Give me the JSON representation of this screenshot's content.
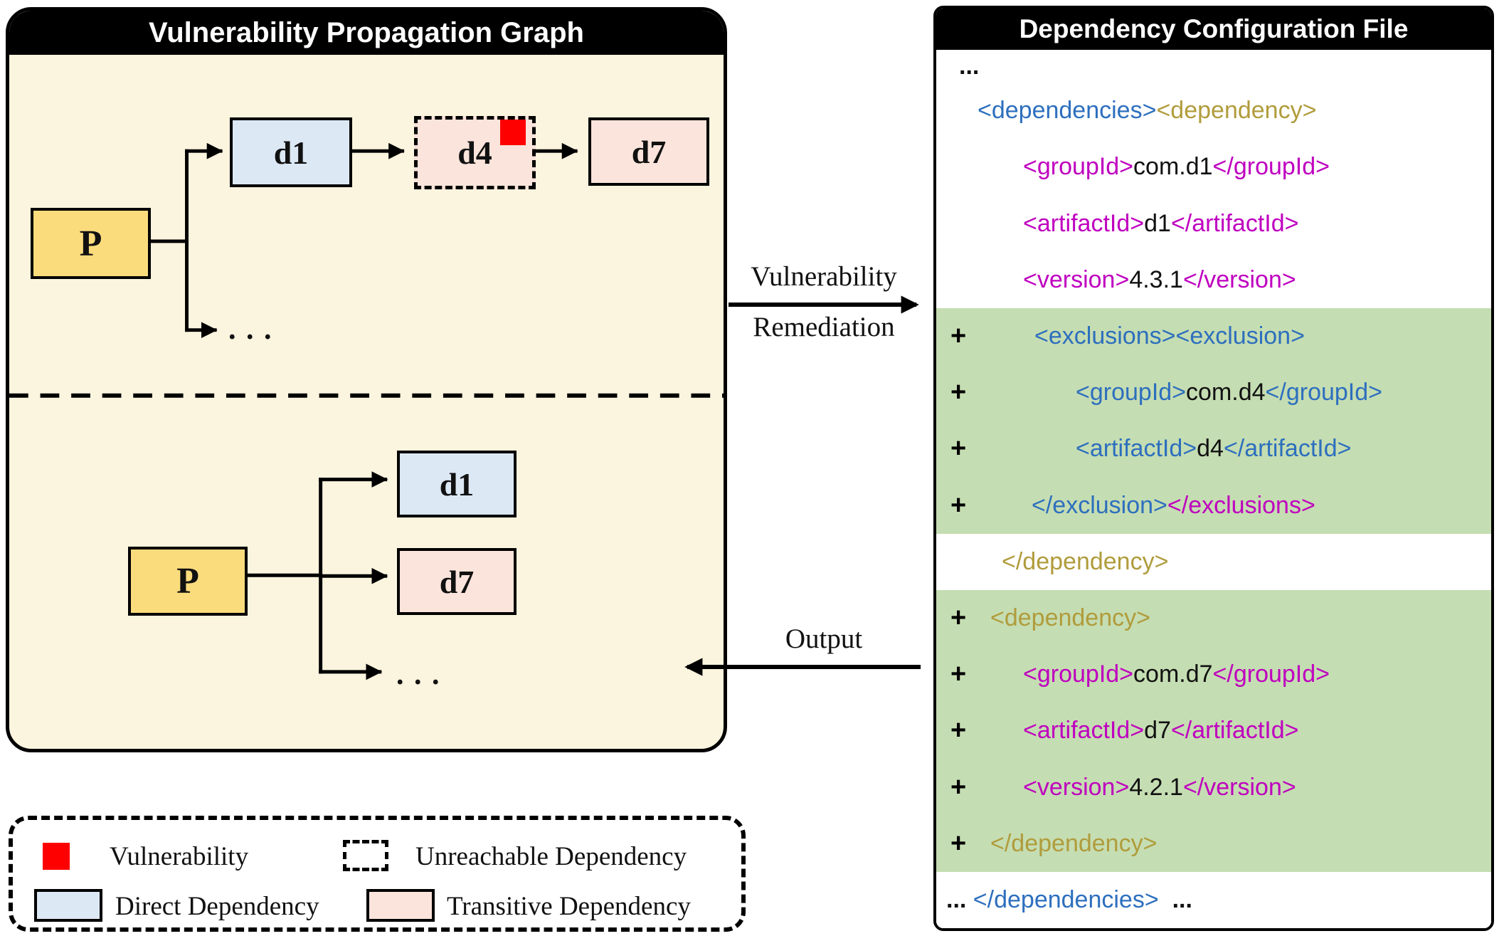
{
  "left_panel": {
    "title": "Vulnerability Propagation Graph",
    "top_graph": {
      "p": "P",
      "d1": "d1",
      "d4": "d4",
      "d7": "d7",
      "ellipsis": ". . ."
    },
    "bottom_graph": {
      "p": "P",
      "d1": "d1",
      "d7": "d7",
      "ellipsis": ". . ."
    }
  },
  "flow": {
    "remediation_line1": "Vulnerability",
    "remediation_line2": "Remediation",
    "output_label": "Output"
  },
  "legend": {
    "vulnerability": "Vulnerability",
    "unreachable": "Unreachable Dependency",
    "direct": "Direct Dependency",
    "transitive": "Transitive Dependency"
  },
  "right_panel": {
    "title": "Dependency Configuration File",
    "code_lines": [
      {
        "pad": 32,
        "plus": false,
        "highlight": false,
        "segments": [
          {
            "t": "...",
            "c": "black",
            "b": true
          }
        ]
      },
      {
        "pad": 58,
        "plus": false,
        "highlight": false,
        "segments": [
          {
            "t": "<dependencies>",
            "c": "blue"
          },
          {
            "t": "<dependency>",
            "c": "olive"
          }
        ]
      },
      {
        "pad": 122,
        "plus": false,
        "highlight": false,
        "segments": [
          {
            "t": "<groupId>",
            "c": "magenta"
          },
          {
            "t": "com.d1",
            "c": "black"
          },
          {
            "t": "</groupId>",
            "c": "magenta"
          }
        ]
      },
      {
        "pad": 122,
        "plus": false,
        "highlight": false,
        "segments": [
          {
            "t": "<artifactId>",
            "c": "magenta"
          },
          {
            "t": "d1",
            "c": "black"
          },
          {
            "t": "</artifactId>",
            "c": "magenta"
          }
        ]
      },
      {
        "pad": 122,
        "plus": false,
        "highlight": false,
        "segments": [
          {
            "t": "<version>",
            "c": "magenta"
          },
          {
            "t": "4.3.1",
            "c": "black"
          },
          {
            "t": "</version>",
            "c": "magenta"
          }
        ]
      },
      {
        "pad": 138,
        "plus": true,
        "highlight": true,
        "segments": [
          {
            "t": "<exclusions>",
            "c": "blue"
          },
          {
            "t": "<exclusion>",
            "c": "blue"
          }
        ]
      },
      {
        "pad": 196,
        "plus": true,
        "highlight": true,
        "segments": [
          {
            "t": "<groupId>",
            "c": "blue"
          },
          {
            "t": "com.d4",
            "c": "black"
          },
          {
            "t": "</groupId>",
            "c": "blue"
          }
        ]
      },
      {
        "pad": 196,
        "plus": true,
        "highlight": true,
        "segments": [
          {
            "t": "<artifactId>",
            "c": "blue"
          },
          {
            "t": "d4",
            "c": "black"
          },
          {
            "t": "</artifactId>",
            "c": "blue"
          }
        ]
      },
      {
        "pad": 134,
        "plus": true,
        "highlight": true,
        "segments": [
          {
            "t": "</exclusion>",
            "c": "blue"
          },
          {
            "t": "</exclusions>",
            "c": "magenta"
          }
        ]
      },
      {
        "pad": 92,
        "plus": false,
        "highlight": false,
        "segments": [
          {
            "t": "</dependency>",
            "c": "olive"
          }
        ]
      },
      {
        "pad": 76,
        "plus": true,
        "highlight": true,
        "segments": [
          {
            "t": "<dependency>",
            "c": "olive"
          }
        ]
      },
      {
        "pad": 122,
        "plus": true,
        "highlight": true,
        "segments": [
          {
            "t": "<groupId>",
            "c": "magenta"
          },
          {
            "t": "com.d7",
            "c": "black"
          },
          {
            "t": "</groupId>",
            "c": "magenta"
          }
        ]
      },
      {
        "pad": 122,
        "plus": true,
        "highlight": true,
        "segments": [
          {
            "t": "<artifactId>",
            "c": "magenta"
          },
          {
            "t": "d7",
            "c": "black"
          },
          {
            "t": "</artifactId>",
            "c": "magenta"
          }
        ]
      },
      {
        "pad": 122,
        "plus": true,
        "highlight": true,
        "segments": [
          {
            "t": "<version>",
            "c": "magenta"
          },
          {
            "t": "4.2.1",
            "c": "black"
          },
          {
            "t": "</version>",
            "c": "magenta"
          }
        ]
      },
      {
        "pad": 76,
        "plus": true,
        "highlight": true,
        "segments": [
          {
            "t": "</dependency>",
            "c": "olive"
          }
        ]
      },
      {
        "pad": 14,
        "plus": false,
        "highlight": false,
        "segments": [
          {
            "t": "... ",
            "c": "black",
            "b": true
          },
          {
            "t": "</dependencies>",
            "c": "blue"
          },
          {
            "t": "  ...",
            "c": "black",
            "b": true
          }
        ]
      }
    ]
  },
  "colors": {
    "panel_bg": "#FBF4DE",
    "node_yellow": "#FBDC7D",
    "node_blue": "#DCE8F4",
    "node_pink": "#FAE4DB",
    "vulnerability_red": "#FF0000",
    "highlight_green": "#C5DDB2",
    "code_blue": "#2D6FBE",
    "code_magenta": "#BF00BF",
    "code_olive": "#B09C3C"
  }
}
